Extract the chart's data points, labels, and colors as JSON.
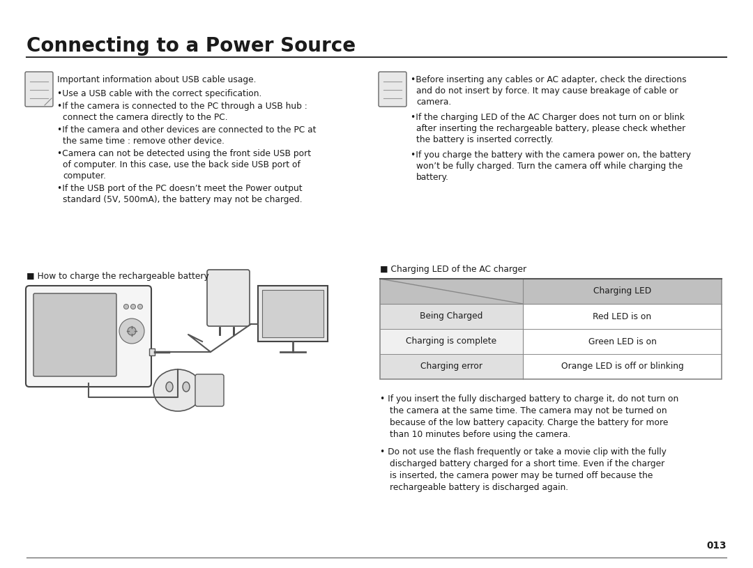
{
  "title": "Connecting to a Power Source",
  "bg_color": "#ffffff",
  "text_color": "#1a1a1a",
  "title_fontsize": 20,
  "body_fontsize": 8.8,
  "left_notes_header": "Important information about USB cable usage.",
  "left_notes": [
    "Use a USB cable with the correct specification.",
    "If the camera is connected to the PC through a USB hub :\n   connect the camera directly to the PC.",
    "If the camera and other devices are connected to the PC at\n   the same time : remove other device.",
    "Camera can not be detected using the front side USB port\n   of computer. In this case, use the back side USB port of\n   computer.",
    "If the USB port of the PC doesn’t meet the Power output\n   standard (5V, 500mA), the battery may not be charged."
  ],
  "right_notes_bullets": [
    "Before inserting any cables or AC adapter, check the directions\n  and do not insert by force. It may cause breakage of cable or\n  camera.",
    "If the charging LED of the AC Charger does not turn on or blink\n  after inserting the rechargeable battery, please check whether\n  the battery is inserted correctly.",
    "If you charge the battery with the camera power on, the battery\n  won’t be fully charged. Turn the camera off while charging the\n  battery."
  ],
  "charging_led_label": "■ Charging LED of the AC charger",
  "table_header_text": "Charging LED",
  "table_rows": [
    [
      "Being Charged",
      "Red LED is on"
    ],
    [
      "Charging is complete",
      "Green LED is on"
    ],
    [
      "Charging error",
      "Orange LED is off or blinking"
    ]
  ],
  "table_header_bg": "#c0c0c0",
  "table_row_bg_odd": "#e0e0e0",
  "table_row_bg_even": "#f0f0f0",
  "table_border": "#888888",
  "bottom_bullets": [
    "If you insert the fully discharged battery to charge it, do not turn on\nthe camera at the same time. The camera may not be turned on\nbecause of the low battery capacity. Charge the battery for more\nthan 10 minutes before using the camera.",
    "Do not use the flash frequently or take a movie clip with the fully\ndischarged battery charged for a short time. Even if the charger\nis inserted, the camera power may be turned off because the\nrechargeable battery is discharged again."
  ],
  "left_bottom_label": "■ How to charge the rechargeable battery",
  "page_number": "013"
}
